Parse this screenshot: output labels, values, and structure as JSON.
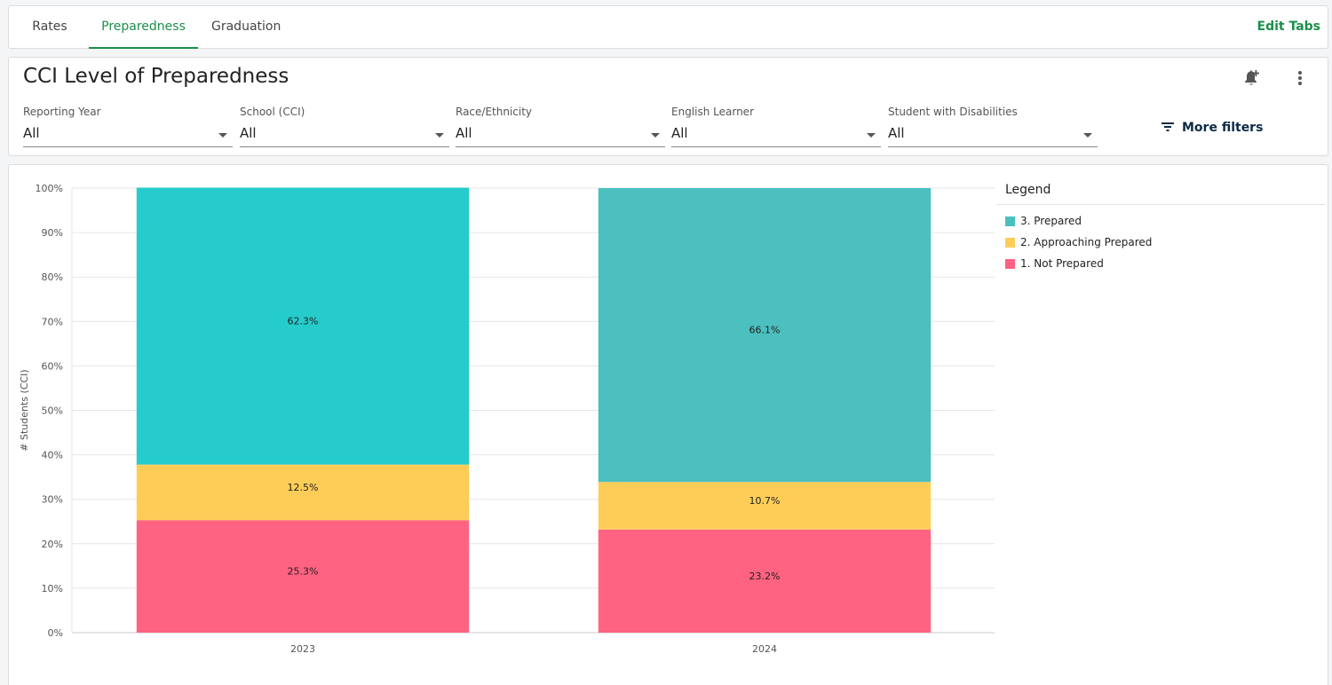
{
  "tabs": [
    {
      "label": "Rates",
      "active": false
    },
    {
      "label": "Preparedness",
      "active": true
    },
    {
      "label": "Graduation",
      "active": false
    }
  ],
  "edit_tabs_label": "Edit Tabs",
  "page_title": "CCI Level of Preparedness",
  "icons": {
    "notify": "add-alert-bell-icon",
    "menu": "more-vertical-icon",
    "filter": "filter-lines-icon"
  },
  "filters": [
    {
      "label": "Reporting Year",
      "value": "All"
    },
    {
      "label": "School (CCI)",
      "value": "All"
    },
    {
      "label": "Race/Ethnicity",
      "value": "All"
    },
    {
      "label": "English Learner",
      "value": "All"
    },
    {
      "label": "Student with Disabilities",
      "value": "All"
    }
  ],
  "more_filters_label": "More filters",
  "colors": {
    "accent": "#1b8f4b",
    "prepared_2023": "#26cccc",
    "prepared_2024": "#4cbfbf",
    "approaching": "#fecd58",
    "not_prepared": "#ff6381"
  },
  "legend": {
    "title": "Legend",
    "items": [
      {
        "label": "3. Prepared",
        "color": "#4cbfbf"
      },
      {
        "label": "2. Approaching Prepared",
        "color": "#fecd58"
      },
      {
        "label": "1. Not Prepared",
        "color": "#ff6381"
      }
    ]
  },
  "chart_data": {
    "type": "bar",
    "stacked": true,
    "categories": [
      "2023",
      "2024"
    ],
    "series": [
      {
        "name": "1. Not Prepared",
        "values": [
          25.3,
          23.2
        ],
        "labels": [
          "25.3%",
          "23.2%"
        ],
        "colors": [
          "#ff6381",
          "#ff6381"
        ]
      },
      {
        "name": "2. Approaching Prepared",
        "values": [
          12.5,
          10.7
        ],
        "labels": [
          "12.5%",
          "10.7%"
        ],
        "colors": [
          "#fecd58",
          "#fecd58"
        ]
      },
      {
        "name": "3. Prepared",
        "values": [
          62.3,
          66.1
        ],
        "labels": [
          "62.3%",
          "66.1%"
        ],
        "colors": [
          "#26cccc",
          "#4cbfbf"
        ]
      }
    ],
    "ylabel": "# Students (CCI)",
    "ylim": [
      0,
      100
    ],
    "yticks": [
      "0%",
      "10%",
      "20%",
      "30%",
      "40%",
      "50%",
      "60%",
      "70%",
      "80%",
      "90%",
      "100%"
    ],
    "grid": true,
    "legend_position": "right"
  }
}
